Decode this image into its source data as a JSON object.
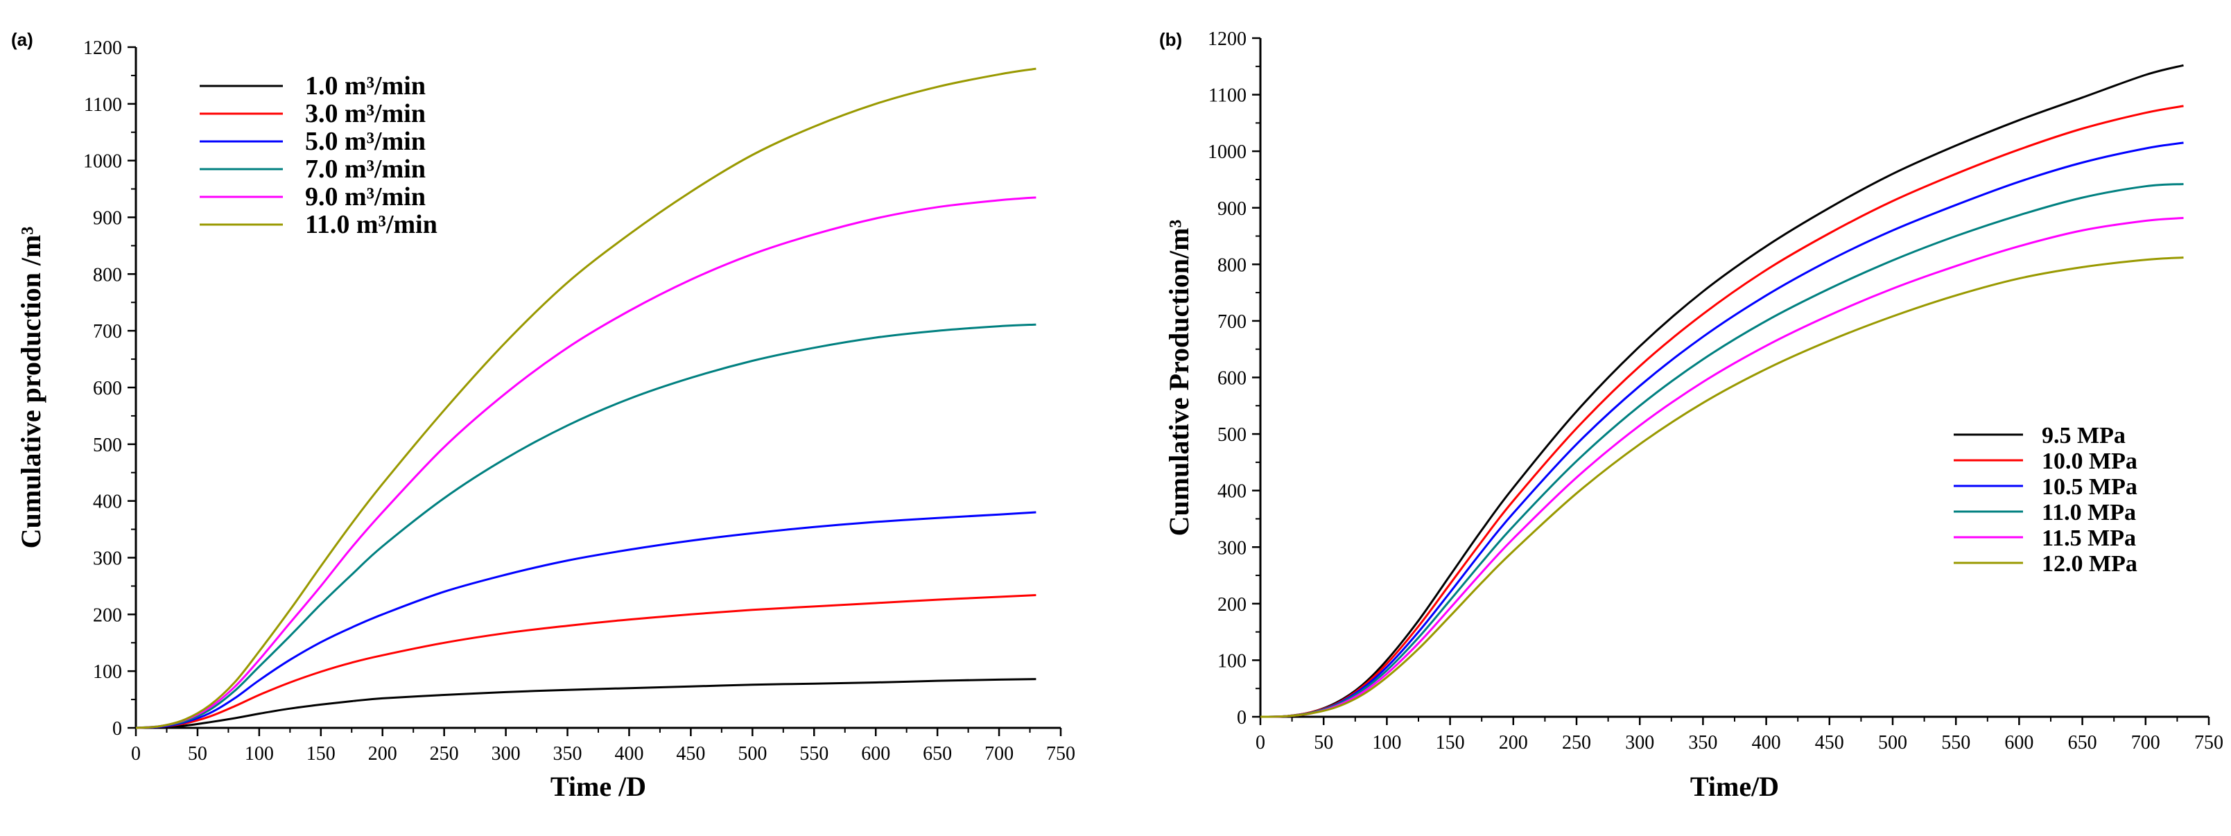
{
  "chart_data": [
    {
      "type": "line",
      "panel_label": "(a)",
      "title": "",
      "xlabel": "Time /D",
      "ylabel": "Cumulative production /m³",
      "xlim": [
        0,
        750
      ],
      "ylim": [
        0,
        1200
      ],
      "xticks": [
        0,
        50,
        100,
        150,
        200,
        250,
        300,
        350,
        400,
        450,
        500,
        550,
        600,
        650,
        700,
        750
      ],
      "yticks": [
        0,
        100,
        200,
        300,
        400,
        500,
        600,
        700,
        800,
        900,
        1000,
        1100,
        1200
      ],
      "grid": false,
      "legend_position": "top-left",
      "x": [
        0,
        20,
        40,
        60,
        80,
        100,
        125,
        150,
        175,
        200,
        250,
        300,
        350,
        400,
        450,
        500,
        550,
        600,
        650,
        700,
        730
      ],
      "series": [
        {
          "name": "1.0 m³/min",
          "color": "#000000",
          "values": [
            0,
            1,
            4,
            10,
            17,
            25,
            34,
            41,
            47,
            52,
            58,
            63,
            67,
            70,
            73,
            76,
            78,
            80,
            83,
            85,
            86
          ]
        },
        {
          "name": "3.0 m³/min",
          "color": "#ff0000",
          "values": [
            0,
            2,
            8,
            20,
            38,
            58,
            80,
            99,
            115,
            128,
            150,
            167,
            180,
            191,
            200,
            208,
            214,
            220,
            226,
            231,
            234
          ]
        },
        {
          "name": "5.0 m³/min",
          "color": "#0000ff",
          "values": [
            0,
            2,
            10,
            26,
            52,
            84,
            120,
            151,
            177,
            200,
            240,
            270,
            295,
            314,
            330,
            343,
            354,
            363,
            370,
            376,
            380
          ]
        },
        {
          "name": "7.0 m³/min",
          "color": "#008080",
          "values": [
            0,
            3,
            12,
            32,
            65,
            108,
            162,
            218,
            270,
            320,
            405,
            475,
            533,
            580,
            617,
            647,
            670,
            688,
            700,
            708,
            711
          ]
        },
        {
          "name": "9.0 m³/min",
          "color": "#ff00ff",
          "values": [
            0,
            3,
            14,
            36,
            72,
            120,
            185,
            250,
            318,
            380,
            495,
            590,
            670,
            735,
            790,
            835,
            870,
            898,
            918,
            930,
            935
          ]
        },
        {
          "name": "11.0 m³/min",
          "color": "#999900",
          "values": [
            0,
            3,
            15,
            40,
            80,
            135,
            208,
            285,
            360,
            430,
            560,
            680,
            785,
            870,
            945,
            1010,
            1060,
            1100,
            1130,
            1152,
            1162
          ]
        }
      ]
    },
    {
      "type": "line",
      "panel_label": "(b)",
      "title": "",
      "xlabel": "Time/D",
      "ylabel": "Cumulative Production/m³",
      "xlim": [
        0,
        750
      ],
      "ylim": [
        0,
        1200
      ],
      "xticks": [
        0,
        50,
        100,
        150,
        200,
        250,
        300,
        350,
        400,
        450,
        500,
        550,
        600,
        650,
        700,
        750
      ],
      "yticks": [
        0,
        100,
        200,
        300,
        400,
        500,
        600,
        700,
        800,
        900,
        1000,
        1100,
        1200
      ],
      "grid": false,
      "legend_position": "bottom-right",
      "x": [
        0,
        20,
        40,
        60,
        80,
        100,
        125,
        150,
        175,
        200,
        250,
        300,
        350,
        400,
        450,
        500,
        550,
        600,
        650,
        700,
        730
      ],
      "series": [
        {
          "name": "9.5 MPa",
          "color": "#000000",
          "values": [
            0,
            1,
            8,
            25,
            55,
            100,
            170,
            250,
            330,
            405,
            540,
            655,
            752,
            832,
            900,
            960,
            1010,
            1055,
            1095,
            1135,
            1152
          ]
        },
        {
          "name": "10.0 MPa",
          "color": "#ff0000",
          "values": [
            0,
            1,
            8,
            23,
            52,
            94,
            160,
            235,
            310,
            382,
            510,
            620,
            712,
            790,
            855,
            912,
            960,
            1003,
            1040,
            1068,
            1080
          ]
        },
        {
          "name": "10.5 MPa",
          "color": "#0000ff",
          "values": [
            0,
            1,
            7,
            22,
            49,
            88,
            150,
            220,
            292,
            360,
            482,
            585,
            672,
            745,
            807,
            860,
            905,
            946,
            980,
            1005,
            1015
          ]
        },
        {
          "name": "11.0 MPa",
          "color": "#008080",
          "values": [
            0,
            1,
            7,
            21,
            46,
            82,
            140,
            206,
            273,
            337,
            452,
            550,
            632,
            700,
            757,
            807,
            850,
            887,
            918,
            938,
            942
          ]
        },
        {
          "name": "11.5 MPa",
          "color": "#ff00ff",
          "values": [
            0,
            1,
            6,
            19,
            42,
            76,
            130,
            192,
            255,
            315,
            423,
            515,
            592,
            656,
            710,
            757,
            797,
            832,
            860,
            877,
            882
          ]
        },
        {
          "name": "12.0 MPa",
          "color": "#999900",
          "values": [
            0,
            1,
            6,
            17,
            38,
            70,
            120,
            178,
            237,
            293,
            395,
            482,
            555,
            615,
            665,
            708,
            745,
            775,
            795,
            808,
            812
          ]
        }
      ]
    }
  ]
}
